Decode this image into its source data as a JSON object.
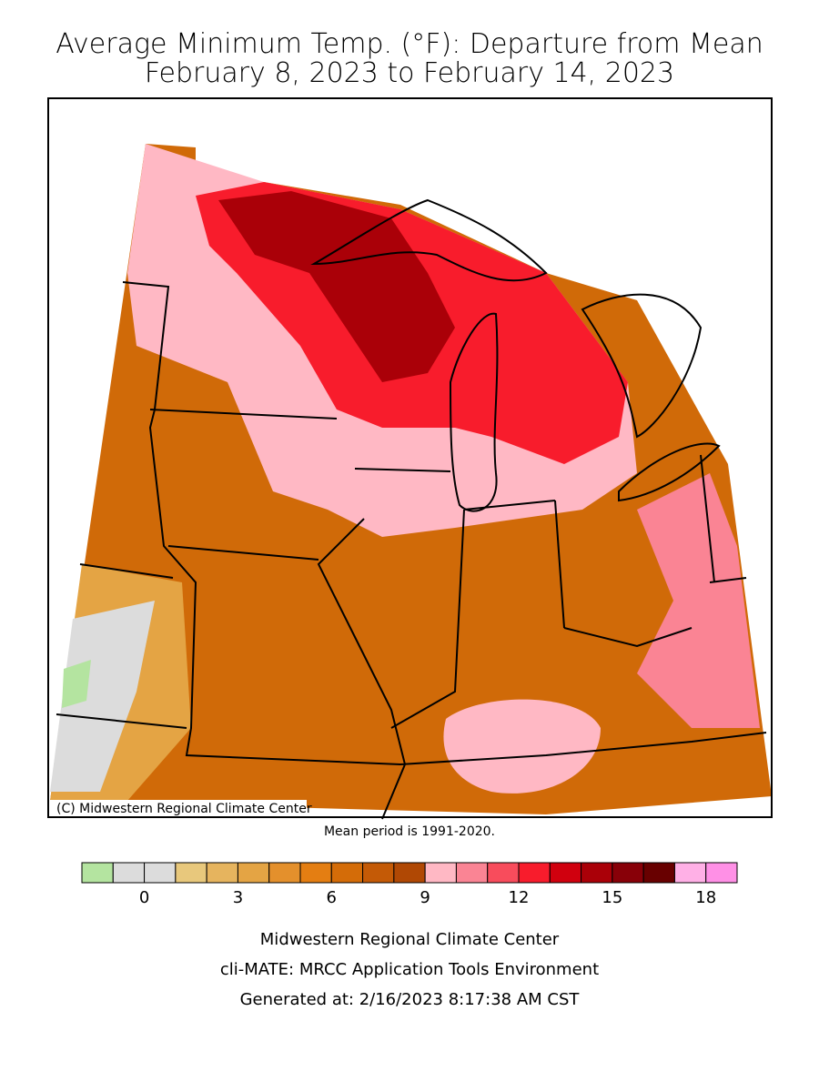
{
  "title": [
    "Average Minimum Temp. (°F): Departure from Mean",
    "February 8, 2023 to February 14, 2023"
  ],
  "copyright": "(C) Midwestern Regional Climate Center",
  "mean_period": "Mean period is 1991-2020.",
  "legend": {
    "lim": [
      -2,
      19
    ],
    "ticks": [
      0,
      3,
      6,
      9,
      12,
      15,
      18
    ],
    "colors": [
      "#b4e4a0",
      "#dcdcdc",
      "#dcdcdc",
      "#e8c87c",
      "#e6b45e",
      "#e4a444",
      "#e4902c",
      "#e47e12",
      "#d46c08",
      "#c45a06",
      "#b04804",
      "#ffb8c4",
      "#fa8494",
      "#f84c5c",
      "#f81c2c",
      "#d0000e",
      "#aa0008",
      "#880008",
      "#680000",
      "#ffb0e6",
      "#ff90e6"
    ]
  },
  "footer": [
    "Midwestern Regional Climate Center",
    "cli-MATE: MRCC Application Tools Environment",
    "Generated at: 2/16/2023 8:17:38 AM CST"
  ]
}
